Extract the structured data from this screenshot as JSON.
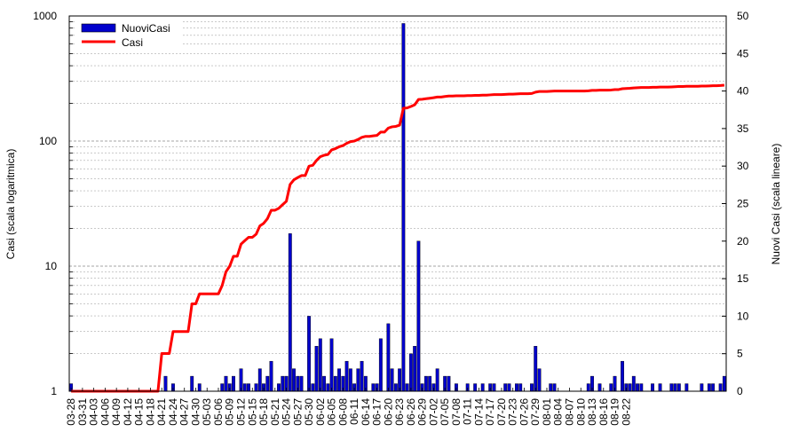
{
  "chart_data": {
    "type": "bar+line",
    "title": "",
    "ylabel_left": "Casi (scala logaritmica)",
    "ylabel_right": "Nuovi Casi (scala lineare)",
    "left_axis": {
      "scale": "log",
      "range": [
        1,
        1000
      ],
      "ticks": [
        "1",
        "10",
        "100",
        "1000"
      ]
    },
    "right_axis": {
      "scale": "linear",
      "range": [
        0,
        50
      ],
      "ticks": [
        "0",
        "5",
        "10",
        "15",
        "20",
        "25",
        "30",
        "35",
        "40",
        "45",
        "50"
      ]
    },
    "grid": "horizontal, dashed",
    "legend": {
      "position": "top-left",
      "entries": [
        {
          "label": "NuoviCasi",
          "color": "#0000cc",
          "kind": "bar"
        },
        {
          "label": "Casi",
          "color": "#ff0000",
          "kind": "line"
        }
      ]
    },
    "start_date": "03-28",
    "x_tick_labels": [
      "03-28",
      "03-31",
      "04-03",
      "04-06",
      "04-09",
      "04-12",
      "04-15",
      "04-18",
      "04-21",
      "04-24",
      "04-27",
      "04-30",
      "05-03",
      "05-06",
      "05-09",
      "05-12",
      "05-15",
      "05-18",
      "05-21",
      "05-24",
      "05-27",
      "05-30",
      "06-02",
      "06-05",
      "06-08",
      "06-11",
      "06-14",
      "06-17",
      "06-20",
      "06-23",
      "06-26",
      "06-29",
      "07-02",
      "07-05",
      "07-08",
      "07-11",
      "07-14",
      "07-17",
      "07-20",
      "07-23",
      "07-26",
      "07-29",
      "08-01",
      "08-04",
      "08-07",
      "08-10",
      "08-13",
      "08-16",
      "08-19",
      "08-22"
    ],
    "series": [
      {
        "name": "NuoviCasi",
        "axis": "right",
        "color": "#0000cc",
        "values": [
          1,
          0,
          0,
          0,
          0,
          0,
          0,
          0,
          0,
          0,
          0,
          0,
          0,
          0,
          0,
          0,
          0,
          0,
          0,
          0,
          0,
          0,
          0,
          0,
          0,
          2,
          0,
          1,
          0,
          0,
          0,
          0,
          2,
          0,
          1,
          0,
          0,
          0,
          0,
          0,
          1,
          2,
          1,
          2,
          0,
          3,
          1,
          1,
          0,
          1,
          3,
          1,
          2,
          4,
          0,
          1,
          2,
          2,
          21,
          3,
          2,
          2,
          0,
          10,
          1,
          6,
          7,
          2,
          1,
          7,
          2,
          3,
          2,
          4,
          3,
          1,
          3,
          4,
          2,
          0,
          1,
          1,
          7,
          0,
          9,
          3,
          1,
          3,
          49,
          1,
          5,
          6,
          20,
          1,
          2,
          2,
          1,
          3,
          0,
          2,
          2,
          0,
          1,
          0,
          0,
          1,
          0,
          1,
          0,
          1,
          0,
          1,
          1,
          0,
          0,
          1,
          1,
          0,
          1,
          1,
          0,
          0,
          1,
          6,
          3,
          0,
          0,
          1,
          1,
          0,
          0,
          0,
          0,
          0,
          0,
          0,
          0,
          1,
          2,
          0,
          1,
          0,
          0,
          1,
          2,
          0,
          4,
          1,
          1,
          2,
          1,
          1,
          0,
          0,
          1,
          0,
          1,
          0,
          0,
          1,
          1,
          1,
          0,
          1,
          0,
          0,
          0,
          1,
          0,
          1,
          1,
          0,
          1,
          2
        ]
      },
      {
        "name": "Casi",
        "axis": "left",
        "color": "#ff0000",
        "values": [
          1,
          1,
          1,
          1,
          1,
          1,
          1,
          1,
          1,
          1,
          1,
          1,
          1,
          1,
          1,
          1,
          1,
          1,
          1,
          1,
          1,
          1,
          1,
          1,
          2,
          2,
          2,
          3,
          3,
          3,
          3,
          3,
          5,
          5,
          6,
          6,
          6,
          6,
          6,
          6,
          7,
          9,
          10,
          12,
          12,
          15,
          16,
          17,
          17,
          18,
          21,
          22,
          24,
          28,
          28,
          29,
          31,
          33,
          45,
          49,
          51,
          53,
          53,
          63,
          64,
          70,
          75,
          77,
          78,
          85,
          87,
          90,
          92,
          96,
          99,
          100,
          103,
          107,
          109,
          109,
          110,
          111,
          118,
          118,
          127,
          130,
          131,
          134,
          183,
          184,
          189,
          195,
          215,
          216,
          218,
          220,
          222,
          225,
          225,
          227,
          229,
          229,
          230,
          230,
          230,
          231,
          231,
          232,
          232,
          233,
          233,
          234,
          235,
          235,
          235,
          236,
          237,
          237,
          238,
          239,
          239,
          239,
          240,
          246,
          249,
          249,
          249,
          250,
          251,
          251,
          251,
          251,
          251,
          251,
          251,
          251,
          251,
          252,
          254,
          254,
          255,
          255,
          255,
          256,
          258,
          258,
          262,
          263,
          264,
          266,
          267,
          268,
          268,
          268,
          269,
          269,
          270,
          270,
          270,
          271,
          272,
          273,
          273,
          274,
          274,
          274,
          274,
          275,
          275,
          276,
          277,
          277,
          278,
          280
        ]
      }
    ]
  }
}
